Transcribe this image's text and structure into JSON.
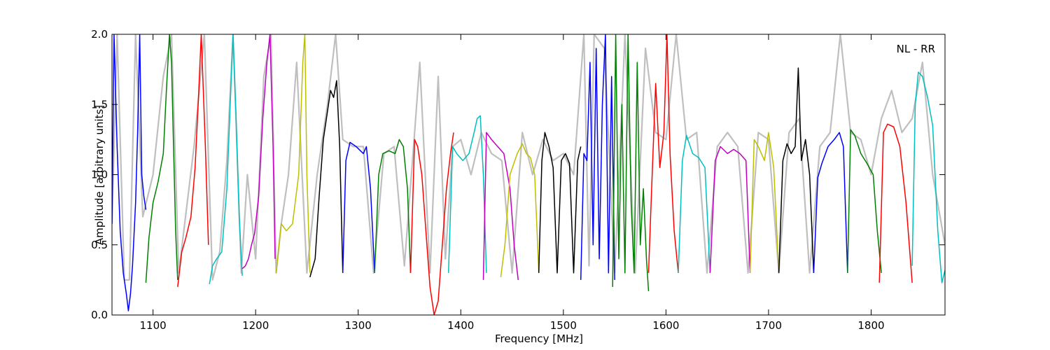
{
  "chart_data": {
    "type": "line",
    "title": "",
    "xlabel": "Frequency [MHz]",
    "ylabel": "Amplitude [arbitrary units]",
    "xlim": [
      1060,
      1872
    ],
    "ylim": [
      0.0,
      2.0
    ],
    "xticks": [
      1100,
      1200,
      1300,
      1400,
      1500,
      1600,
      1700,
      1800
    ],
    "yticks": [
      0.0,
      0.5,
      1.0,
      1.5,
      2.0
    ],
    "ytick_labels": [
      "0.0",
      "0.5",
      "1.0",
      "1.5",
      "2.0"
    ],
    "annotation": "NL - RR",
    "grid": false,
    "background_trace": {
      "color": "#bfbfbf",
      "x": [
        1060,
        1065,
        1072,
        1077,
        1083,
        1090,
        1095,
        1100,
        1110,
        1118,
        1125,
        1140,
        1150,
        1158,
        1165,
        1172,
        1178,
        1186,
        1192,
        1200,
        1208,
        1215,
        1220,
        1225,
        1232,
        1240,
        1250,
        1260,
        1270,
        1278,
        1285,
        1295,
        1305,
        1315,
        1325,
        1335,
        1345,
        1355,
        1360,
        1370,
        1378,
        1385,
        1392,
        1400,
        1410,
        1420,
        1430,
        1440,
        1450,
        1460,
        1470,
        1480,
        1490,
        1500,
        1510,
        1520,
        1525,
        1530,
        1540,
        1550,
        1560,
        1570,
        1580,
        1590,
        1600,
        1610,
        1620,
        1630,
        1640,
        1650,
        1660,
        1670,
        1680,
        1690,
        1700,
        1710,
        1720,
        1730,
        1740,
        1750,
        1760,
        1770,
        1780,
        1790,
        1800,
        1810,
        1820,
        1830,
        1840,
        1850,
        1860,
        1872
      ],
      "y": [
        0.65,
        2.0,
        0.25,
        0.25,
        2.0,
        0.7,
        0.85,
        1.0,
        1.7,
        2.0,
        0.3,
        1.2,
        2.0,
        0.25,
        0.45,
        1.1,
        2.0,
        0.3,
        1.0,
        0.4,
        1.7,
        2.0,
        0.3,
        0.65,
        1.0,
        1.8,
        0.3,
        1.0,
        1.5,
        2.0,
        1.25,
        1.2,
        1.2,
        0.3,
        1.15,
        1.2,
        0.35,
        1.3,
        1.8,
        0.3,
        1.7,
        0.4,
        1.2,
        1.25,
        1.0,
        1.3,
        1.15,
        1.1,
        0.3,
        1.3,
        1.0,
        1.25,
        1.1,
        1.15,
        1.0,
        2.0,
        0.35,
        2.0,
        1.9,
        0.3,
        2.0,
        0.3,
        1.9,
        1.3,
        1.25,
        2.0,
        1.25,
        1.3,
        0.3,
        1.2,
        1.3,
        1.2,
        0.3,
        1.3,
        1.25,
        0.3,
        1.3,
        1.4,
        0.3,
        1.2,
        1.3,
        2.0,
        1.3,
        1.25,
        1.0,
        1.4,
        1.6,
        1.3,
        1.4,
        1.8,
        1.0,
        0.5
      ]
    },
    "series": [
      {
        "color": "#0000ff",
        "x": [
          1060,
          1062,
          1065,
          1068,
          1071,
          1074,
          1076,
          1078,
          1080,
          1083,
          1085,
          1087,
          1089,
          1091,
          1093
        ],
        "y": [
          0.65,
          2.0,
          1.2,
          0.6,
          0.3,
          0.15,
          0.03,
          0.15,
          0.35,
          0.8,
          1.3,
          2.0,
          1.0,
          0.85,
          0.75
        ]
      },
      {
        "color": "#008000",
        "x": [
          1093,
          1096,
          1100,
          1105,
          1110,
          1113,
          1116,
          1118,
          1120,
          1122,
          1124
        ],
        "y": [
          0.23,
          0.55,
          0.8,
          0.95,
          1.15,
          1.6,
          2.0,
          1.8,
          1.2,
          0.6,
          0.25
        ]
      },
      {
        "color": "#ff0000",
        "x": [
          1124,
          1128,
          1132,
          1137,
          1141,
          1144,
          1147,
          1151,
          1154
        ],
        "y": [
          0.2,
          0.45,
          0.55,
          0.7,
          1.05,
          1.5,
          2.0,
          1.2,
          0.5
        ]
      },
      {
        "color": "#00bfbf",
        "x": [
          1155,
          1158,
          1162,
          1167,
          1172,
          1175,
          1178,
          1181,
          1184,
          1187
        ],
        "y": [
          0.22,
          0.35,
          0.4,
          0.45,
          0.9,
          1.45,
          2.0,
          1.4,
          0.7,
          0.28
        ]
      },
      {
        "color": "#bf00bf",
        "x": [
          1187,
          1190,
          1193,
          1196,
          1199,
          1203,
          1207,
          1211,
          1214,
          1217,
          1219
        ],
        "y": [
          0.33,
          0.35,
          0.4,
          0.5,
          0.58,
          0.85,
          1.4,
          1.8,
          2.0,
          1.2,
          0.4
        ]
      },
      {
        "color": "#bfbf00",
        "x": [
          1220,
          1225,
          1230,
          1236,
          1242,
          1246,
          1248,
          1250,
          1253
        ],
        "y": [
          0.3,
          0.65,
          0.6,
          0.65,
          1.0,
          1.8,
          2.0,
          1.0,
          0.3
        ]
      },
      {
        "color": "#000000",
        "x": [
          1253,
          1258,
          1262,
          1266,
          1270,
          1273,
          1276,
          1279,
          1282,
          1285
        ],
        "y": [
          0.27,
          0.4,
          0.85,
          1.25,
          1.45,
          1.6,
          1.55,
          1.67,
          1.2,
          0.3
        ]
      },
      {
        "color": "#0000ff",
        "x": [
          1285,
          1288,
          1292,
          1298,
          1305,
          1308,
          1312,
          1316
        ],
        "y": [
          0.3,
          1.1,
          1.23,
          1.2,
          1.15,
          1.2,
          0.9,
          0.3
        ]
      },
      {
        "color": "#008000",
        "x": [
          1316,
          1320,
          1324,
          1330,
          1336,
          1340,
          1344,
          1348,
          1351
        ],
        "y": [
          0.3,
          1.0,
          1.15,
          1.17,
          1.15,
          1.25,
          1.2,
          0.9,
          0.3
        ]
      },
      {
        "color": "#ff0000",
        "x": [
          1351,
          1355,
          1358,
          1362,
          1366,
          1370,
          1374,
          1378,
          1382,
          1386,
          1390,
          1393
        ],
        "y": [
          0.3,
          1.25,
          1.2,
          1.0,
          0.6,
          0.2,
          0.0,
          0.1,
          0.5,
          0.9,
          1.15,
          1.3
        ]
      },
      {
        "color": "#00bfbf",
        "x": [
          1388,
          1392,
          1396,
          1402,
          1408,
          1413,
          1416,
          1419,
          1422,
          1425
        ],
        "y": [
          0.3,
          1.2,
          1.15,
          1.1,
          1.15,
          1.3,
          1.4,
          1.42,
          1.0,
          0.3
        ]
      },
      {
        "color": "#bf00bf",
        "x": [
          1422,
          1425,
          1430,
          1436,
          1442,
          1448,
          1452,
          1456
        ],
        "y": [
          0.25,
          1.3,
          1.25,
          1.2,
          1.15,
          0.9,
          0.5,
          0.25
        ]
      },
      {
        "color": "#bfbf00",
        "x": [
          1439,
          1443,
          1448,
          1455,
          1460,
          1464,
          1468,
          1472,
          1476
        ],
        "y": [
          0.27,
          0.5,
          1.0,
          1.15,
          1.22,
          1.15,
          1.12,
          1.0,
          0.3
        ]
      },
      {
        "color": "#000000",
        "x": [
          1476,
          1479,
          1482,
          1486,
          1490,
          1494,
          1498,
          1502,
          1506,
          1510,
          1514,
          1517
        ],
        "y": [
          0.3,
          1.1,
          1.3,
          1.2,
          1.05,
          0.3,
          1.1,
          1.15,
          1.08,
          0.3,
          1.1,
          1.2
        ]
      },
      {
        "color": "#0000ff",
        "x": [
          1517,
          1520,
          1523,
          1526,
          1529,
          1532,
          1535,
          1538,
          1541,
          1544,
          1547,
          1550
        ],
        "y": [
          0.25,
          1.15,
          1.1,
          1.8,
          0.5,
          1.9,
          0.4,
          1.5,
          2.0,
          0.3,
          1.7,
          0.25
        ]
      },
      {
        "color": "#008000",
        "x": [
          1548,
          1551,
          1554,
          1557,
          1560,
          1563,
          1566,
          1569,
          1572,
          1575,
          1578,
          1581,
          1583
        ],
        "y": [
          0.2,
          2.0,
          0.4,
          1.5,
          0.3,
          2.0,
          0.8,
          0.3,
          1.8,
          0.5,
          0.9,
          0.4,
          0.17
        ]
      },
      {
        "color": "#ff0000",
        "x": [
          1583,
          1586,
          1590,
          1594,
          1598,
          1601,
          1604,
          1608,
          1612
        ],
        "y": [
          0.3,
          0.9,
          1.65,
          1.05,
          1.3,
          2.0,
          1.15,
          0.6,
          0.3
        ]
      },
      {
        "color": "#00bfbf",
        "x": [
          1612,
          1616,
          1620,
          1626,
          1632,
          1638,
          1643
        ],
        "y": [
          0.3,
          1.1,
          1.28,
          1.15,
          1.12,
          1.05,
          0.3
        ]
      },
      {
        "color": "#bf00bf",
        "x": [
          1643,
          1648,
          1653,
          1660,
          1666,
          1672,
          1678,
          1682
        ],
        "y": [
          0.3,
          1.1,
          1.2,
          1.15,
          1.18,
          1.15,
          1.1,
          0.3
        ]
      },
      {
        "color": "#bfbf00",
        "x": [
          1682,
          1686,
          1690,
          1696,
          1700,
          1705,
          1710
        ],
        "y": [
          0.3,
          1.25,
          1.2,
          1.1,
          1.3,
          1.05,
          0.3
        ]
      },
      {
        "color": "#000000",
        "x": [
          1710,
          1714,
          1718,
          1722,
          1726,
          1729,
          1732,
          1736,
          1740,
          1744
        ],
        "y": [
          0.3,
          1.1,
          1.22,
          1.15,
          1.2,
          1.76,
          1.1,
          1.25,
          1.0,
          0.3
        ]
      },
      {
        "color": "#0000ff",
        "x": [
          1744,
          1748,
          1752,
          1758,
          1764,
          1769,
          1773,
          1777
        ],
        "y": [
          0.3,
          0.98,
          1.08,
          1.2,
          1.25,
          1.3,
          1.2,
          0.3
        ]
      },
      {
        "color": "#008000",
        "x": [
          1777,
          1780,
          1784,
          1790,
          1796,
          1802,
          1806,
          1810
        ],
        "y": [
          0.3,
          1.32,
          1.28,
          1.15,
          1.08,
          1.0,
          0.6,
          0.3
        ]
      },
      {
        "color": "#ff0000",
        "x": [
          1808,
          1812,
          1816,
          1822,
          1828,
          1834,
          1840
        ],
        "y": [
          0.23,
          1.3,
          1.36,
          1.34,
          1.2,
          0.8,
          0.23
        ]
      },
      {
        "color": "#00bfbf",
        "x": [
          1840,
          1843,
          1846,
          1850,
          1855,
          1860,
          1865,
          1869,
          1872
        ],
        "y": [
          0.35,
          1.5,
          1.73,
          1.7,
          1.55,
          1.35,
          0.6,
          0.23,
          0.32
        ]
      }
    ]
  }
}
